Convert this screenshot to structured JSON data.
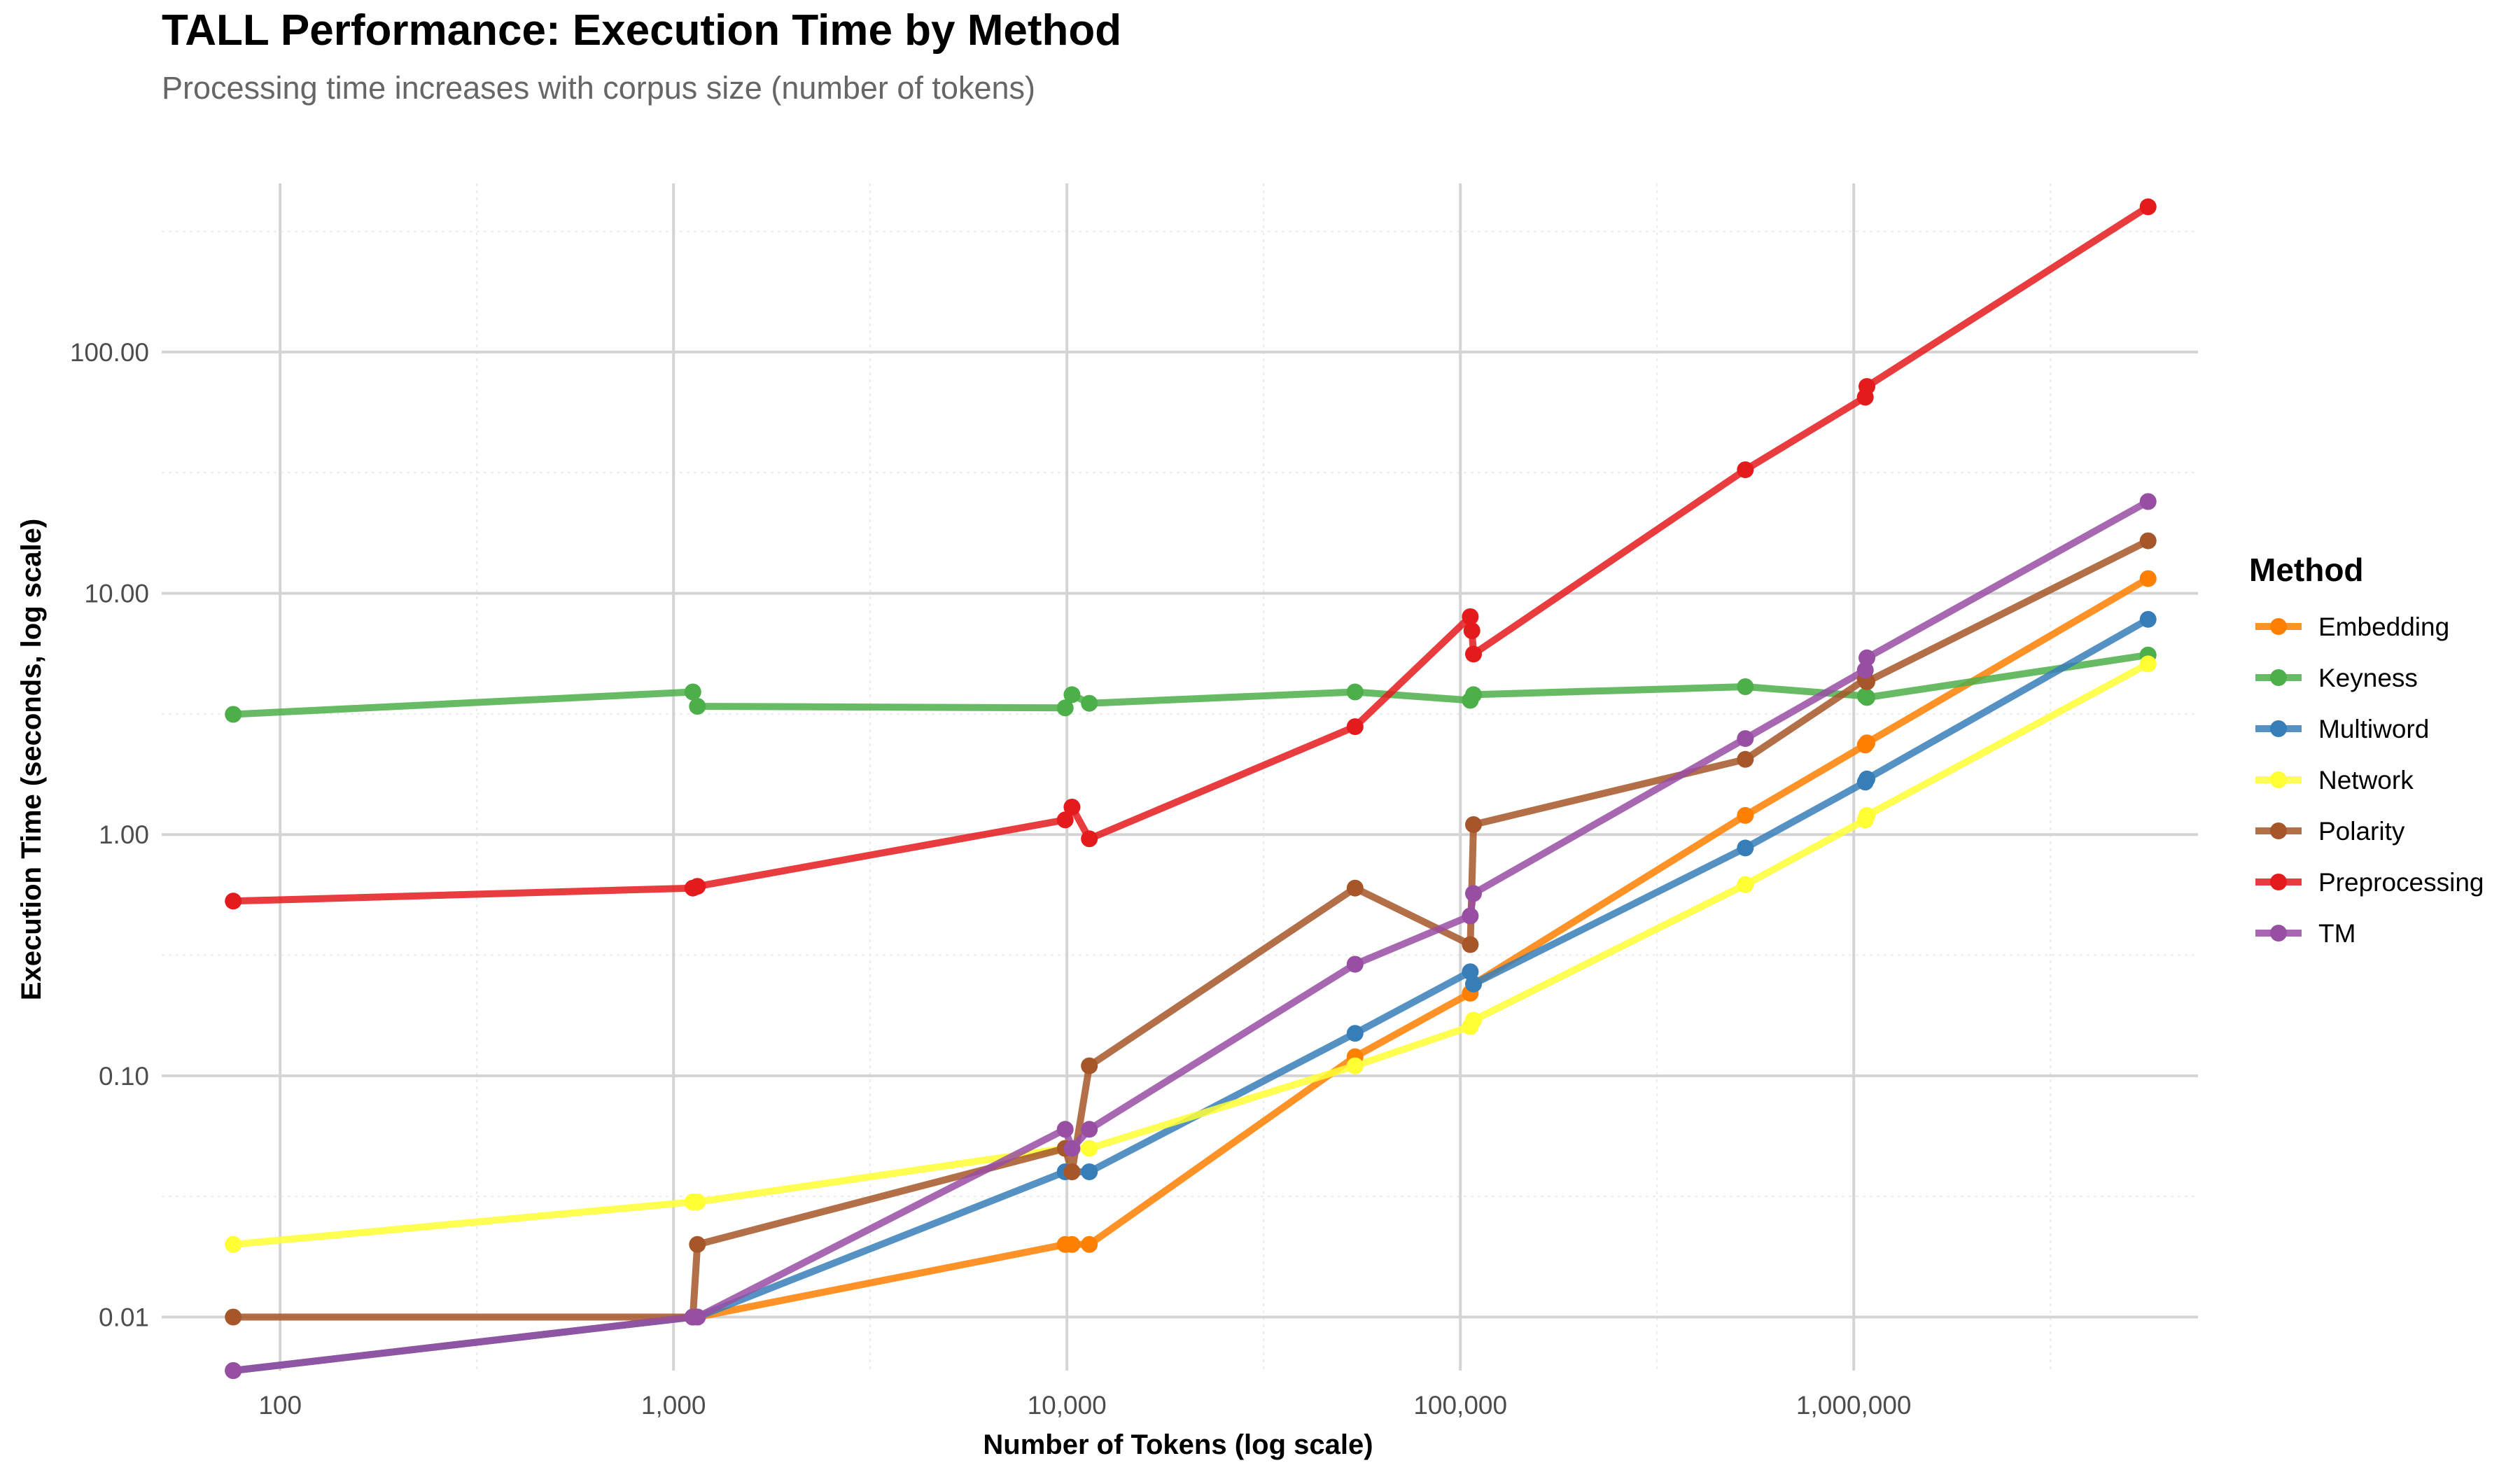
{
  "chart_data": {
    "type": "line",
    "title": "TALL Performance: Execution Time by Method",
    "subtitle": "Processing time increases with corpus size (number of tokens)",
    "xlabel": "Number of Tokens (log scale)",
    "ylabel": "Execution Time (seconds, log scale)",
    "x_scale": "log",
    "y_scale": "log",
    "xlim": [
      50,
      7500000
    ],
    "ylim": [
      0.006,
      500
    ],
    "x_ticks": [
      100,
      1000,
      10000,
      100000,
      1000000
    ],
    "x_tick_labels": [
      "100",
      "1,000",
      "10,000",
      "100,000",
      "1,000,000"
    ],
    "y_ticks": [
      0.01,
      0.1,
      1,
      10,
      100
    ],
    "y_tick_labels": [
      "0.01",
      "0.10",
      "1.00",
      "10.00",
      "100.00"
    ],
    "grid": true,
    "legend_title": "Method",
    "legend_position": "right",
    "series": [
      {
        "name": "Embedding",
        "color": "#FF7F00",
        "x": [
          76,
          1120,
          1150,
          9900,
          10300,
          11400,
          54000,
          106000,
          108000,
          530000,
          1070000,
          1080000,
          5600000
        ],
        "y": [
          0.006,
          0.01,
          0.01,
          0.02,
          0.02,
          0.02,
          0.12,
          0.22,
          0.24,
          1.2,
          2.35,
          2.4,
          11.5
        ]
      },
      {
        "name": "Keyness",
        "color": "#4DAF4A",
        "x": [
          76,
          1120,
          1150,
          9900,
          10300,
          11400,
          54000,
          106000,
          108000,
          530000,
          1070000,
          1080000,
          5600000
        ],
        "y": [
          3.15,
          3.9,
          3.4,
          3.35,
          3.8,
          3.5,
          3.9,
          3.6,
          3.8,
          4.1,
          3.75,
          3.7,
          5.55
        ]
      },
      {
        "name": "Multiword",
        "color": "#377EB8",
        "x": [
          76,
          1120,
          1150,
          9900,
          10300,
          11400,
          54000,
          106000,
          108000,
          530000,
          1070000,
          1080000,
          5600000
        ],
        "y": [
          0.006,
          0.01,
          0.01,
          0.04,
          0.04,
          0.04,
          0.15,
          0.27,
          0.24,
          0.88,
          1.65,
          1.7,
          7.8
        ]
      },
      {
        "name": "Network",
        "color": "#FFFF33",
        "x": [
          76,
          1120,
          1150,
          9900,
          10300,
          11400,
          54000,
          106000,
          108000,
          530000,
          1070000,
          1080000,
          5600000
        ],
        "y": [
          0.02,
          0.03,
          0.03,
          0.05,
          0.05,
          0.05,
          0.11,
          0.16,
          0.17,
          0.62,
          1.15,
          1.2,
          5.1
        ]
      },
      {
        "name": "Polarity",
        "color": "#A65628",
        "x": [
          76,
          1120,
          1150,
          9900,
          10300,
          11400,
          54000,
          106000,
          108000,
          530000,
          1070000,
          1080000,
          5600000
        ],
        "y": [
          0.01,
          0.01,
          0.02,
          0.05,
          0.04,
          0.11,
          0.6,
          0.35,
          1.1,
          2.05,
          4.4,
          4.3,
          16.5
        ]
      },
      {
        "name": "Preprocessing",
        "color": "#E41A1C",
        "x": [
          76,
          1120,
          1150,
          9900,
          10300,
          11400,
          54000,
          106000,
          107000,
          108000,
          530000,
          1070000,
          1080000,
          5600000
        ],
        "y": [
          0.53,
          0.6,
          0.61,
          1.15,
          1.3,
          0.96,
          2.8,
          8.0,
          7.0,
          5.6,
          32.5,
          65.0,
          72.0,
          400.0
        ]
      },
      {
        "name": "TM",
        "color": "#984EA3",
        "x": [
          76,
          1120,
          1150,
          9900,
          10300,
          11400,
          54000,
          106000,
          108000,
          530000,
          1070000,
          1080000,
          5600000
        ],
        "y": [
          0.006,
          0.01,
          0.01,
          0.06,
          0.05,
          0.06,
          0.29,
          0.46,
          0.57,
          2.5,
          4.8,
          5.4,
          24.0
        ]
      }
    ]
  }
}
